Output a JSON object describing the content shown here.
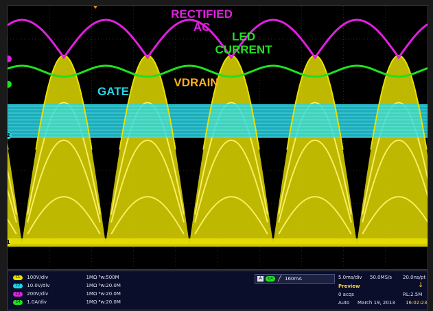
{
  "colors": {
    "rectified_ac": "#e020e0",
    "led_current": "#20e020",
    "gate": "#22d8e8",
    "vdrain": "#e8e000",
    "vdrain_label": "#ffb020"
  },
  "labels": {
    "rectified_ac": "RECTIFIED\nAC",
    "led_current": "LED\nCURRENT",
    "gate": "GATE",
    "vdrain": "VDRAIN"
  },
  "channel_markers": [
    "1",
    "2"
  ],
  "channels": [
    {
      "badge": "C1",
      "scale": "100V/div",
      "imp": "1MΩ ᴮw:500M",
      "color": "#e8e000"
    },
    {
      "badge": "C2",
      "scale": "10.0V/div",
      "imp": "1MΩ ᴮw:20.0M",
      "color": "#22d8e8"
    },
    {
      "badge": "C3",
      "scale": "200V/div",
      "imp": "1MΩ ᴮw:20.0M",
      "color": "#e020e0"
    },
    {
      "badge": "C4",
      "scale": "1.0A/div",
      "imp": "1MΩ ᴮw:20.0M",
      "color": "#20e020"
    }
  ],
  "trigger": {
    "mode": "A",
    "source": "C4",
    "level": "160mA"
  },
  "acquisition": {
    "timebase": "5.0ms/div",
    "sample_rate": "50.0MS/s",
    "resolution": "20.0ns/pt",
    "state": "Preview",
    "acqs": "0 acqs",
    "record_length": "RL:2.5M",
    "trigger_mode": "Auto",
    "date": "March 19, 2013",
    "time": "16:02:23"
  }
}
